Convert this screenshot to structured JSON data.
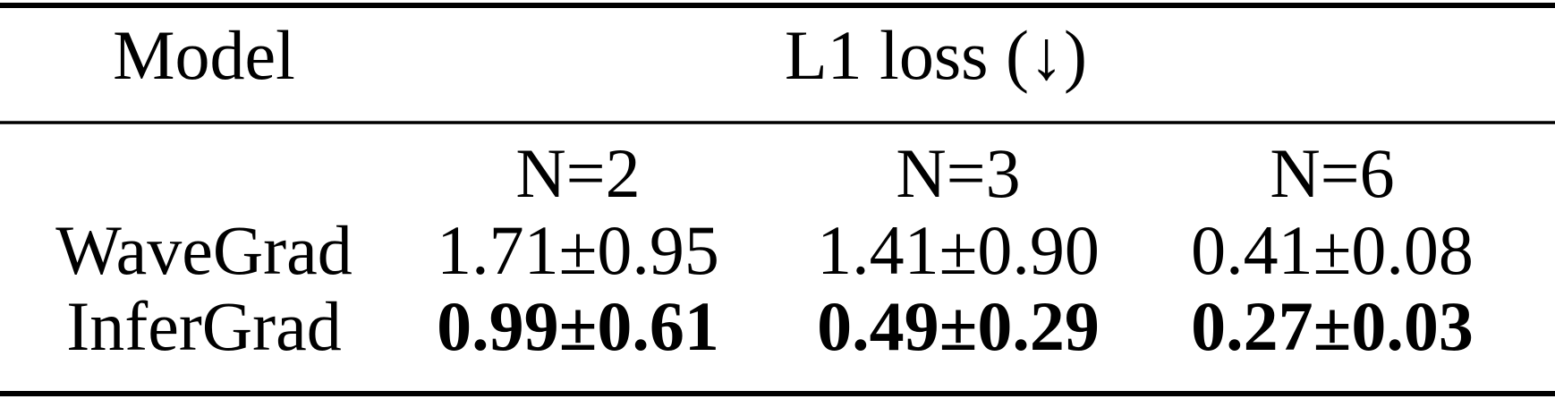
{
  "table": {
    "header": {
      "model": "Model",
      "metric": "L1 loss (↓)"
    },
    "subheader": [
      "N=2",
      "N=3",
      "N=6"
    ],
    "rows": [
      {
        "model": "WaveGrad",
        "cells": [
          "1.71±0.95",
          "1.41±0.90",
          "0.41±0.08"
        ],
        "bold": false
      },
      {
        "model": "InferGrad",
        "cells": [
          "0.99±0.61",
          "0.49±0.29",
          "0.27±0.03"
        ],
        "bold": true
      }
    ]
  }
}
